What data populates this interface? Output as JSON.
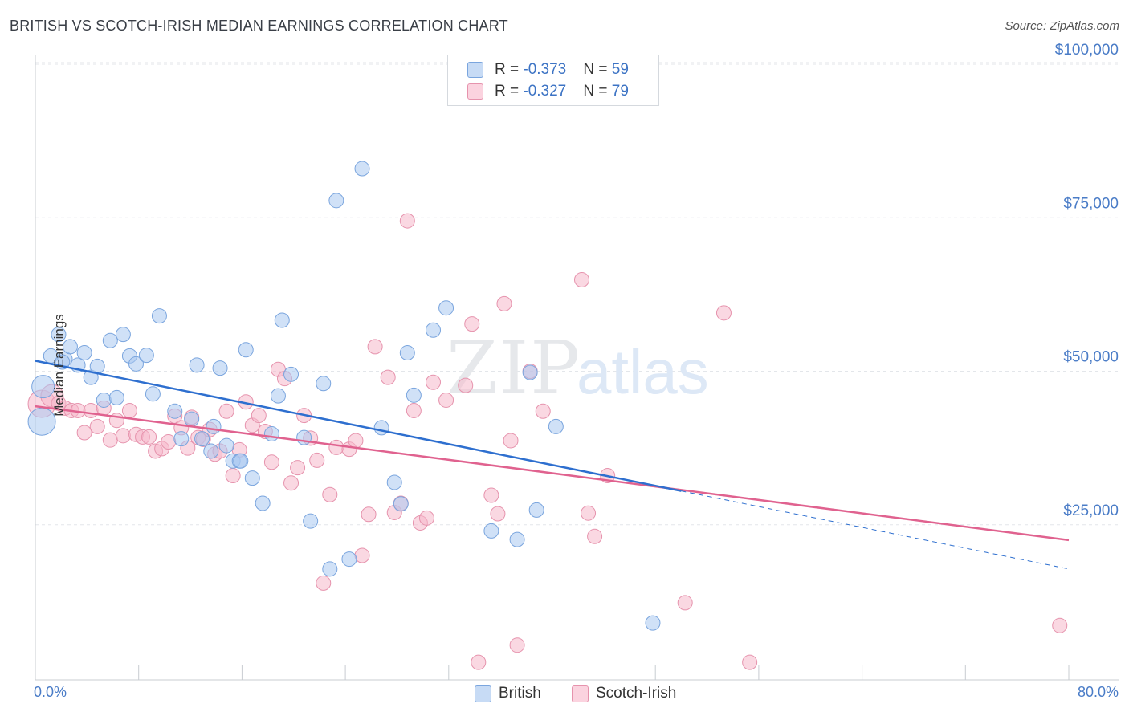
{
  "title": "BRITISH VS SCOTCH-IRISH MEDIAN EARNINGS CORRELATION CHART",
  "source": "Source: ZipAtlas.com",
  "watermark": {
    "zip": "ZIP",
    "atlas": "atlas"
  },
  "legend_top": [
    {
      "r_label": "R = ",
      "r_value": "-0.373",
      "n_label": "N = ",
      "n_value": "59",
      "color": "#aac8f0"
    },
    {
      "r_label": "R = ",
      "r_value": "-0.327",
      "n_label": "N = ",
      "n_value": "79",
      "color": "#f6b8cb"
    }
  ],
  "legend_bottom": [
    {
      "label": "British",
      "color": "#aac8f0"
    },
    {
      "label": "Scotch-Irish",
      "color": "#f6b8cb"
    }
  ],
  "axis": {
    "x_min_label": "0.0%",
    "x_max_label": "80.0%",
    "y_label": "Median Earnings"
  },
  "chart_data": {
    "type": "scatter",
    "title": "BRITISH VS SCOTCH-IRISH MEDIAN EARNINGS CORRELATION CHART",
    "xlabel": "",
    "ylabel": "Median Earnings",
    "xlim": [
      0,
      80
    ],
    "ylim": [
      0,
      102000
    ],
    "y_ticks": [
      25000,
      50000,
      75000,
      100000
    ],
    "y_tick_labels": [
      "$25,000",
      "$50,000",
      "$75,000",
      "$100,000"
    ],
    "grid": true,
    "legend_position": "bottom-center",
    "series": [
      {
        "name": "British",
        "color": "#aac8f0",
        "stroke": "#7aa5de",
        "trend_color": "#2e6fcf",
        "trend": {
          "x0": 0,
          "y0": 51700,
          "x1": 50,
          "y1": 30500,
          "dash_to_x": 80,
          "dash_to_y": 17800
        },
        "points": [
          [
            0.5,
            41800
          ],
          [
            0.6,
            47500
          ],
          [
            1.2,
            52500
          ],
          [
            1.8,
            56000
          ],
          [
            2.3,
            52000
          ],
          [
            2.7,
            54000
          ],
          [
            3.3,
            51000
          ],
          [
            3.8,
            53000
          ],
          [
            4.3,
            49000
          ],
          [
            4.8,
            50800
          ],
          [
            5.3,
            45300
          ],
          [
            5.8,
            55000
          ],
          [
            6.3,
            45700
          ],
          [
            6.8,
            56000
          ],
          [
            7.3,
            52500
          ],
          [
            7.8,
            51200
          ],
          [
            8.6,
            52600
          ],
          [
            9.1,
            46300
          ],
          [
            9.6,
            59000
          ],
          [
            10.8,
            43500
          ],
          [
            11.3,
            39000
          ],
          [
            12.1,
            42200
          ],
          [
            12.5,
            51000
          ],
          [
            12.9,
            39000
          ],
          [
            13.6,
            37000
          ],
          [
            13.8,
            41000
          ],
          [
            14.3,
            50500
          ],
          [
            14.8,
            37900
          ],
          [
            15.3,
            35400
          ],
          [
            15.8,
            35400
          ],
          [
            16.3,
            53500
          ],
          [
            16.8,
            32600
          ],
          [
            17.6,
            28500
          ],
          [
            18.3,
            39800
          ],
          [
            18.8,
            46000
          ],
          [
            19.1,
            58300
          ],
          [
            19.8,
            49500
          ],
          [
            20.8,
            39200
          ],
          [
            21.3,
            25600
          ],
          [
            22.3,
            48000
          ],
          [
            22.8,
            17800
          ],
          [
            23.3,
            77800
          ],
          [
            24.3,
            19400
          ],
          [
            25.3,
            83000
          ],
          [
            26.8,
            40800
          ],
          [
            27.8,
            31900
          ],
          [
            28.3,
            28400
          ],
          [
            28.8,
            53000
          ],
          [
            29.3,
            46100
          ],
          [
            30.8,
            56700
          ],
          [
            31.8,
            60300
          ],
          [
            35.3,
            24000
          ],
          [
            37.3,
            22600
          ],
          [
            38.3,
            49800
          ],
          [
            38.8,
            27400
          ],
          [
            40.3,
            41000
          ],
          [
            47.8,
            9000
          ],
          [
            2.1,
            51500
          ],
          [
            15.9,
            35400
          ]
        ]
      },
      {
        "name": "Scotch-Irish",
        "color": "#f6b8cb",
        "stroke": "#e693ad",
        "trend_color": "#e0628f",
        "trend": {
          "x0": 0,
          "y0": 44300,
          "x1": 80,
          "y1": 22500
        },
        "points": [
          [
            0.5,
            44700
          ],
          [
            1.3,
            46000
          ],
          [
            1.8,
            44800
          ],
          [
            2.3,
            44000
          ],
          [
            2.8,
            43600
          ],
          [
            3.3,
            43600
          ],
          [
            3.8,
            40000
          ],
          [
            4.3,
            43600
          ],
          [
            4.8,
            41000
          ],
          [
            5.3,
            44000
          ],
          [
            5.8,
            38800
          ],
          [
            6.3,
            42000
          ],
          [
            6.8,
            39500
          ],
          [
            7.3,
            43600
          ],
          [
            7.8,
            39700
          ],
          [
            8.3,
            39300
          ],
          [
            8.8,
            39300
          ],
          [
            9.3,
            37000
          ],
          [
            9.8,
            37400
          ],
          [
            10.3,
            38500
          ],
          [
            10.8,
            42700
          ],
          [
            11.3,
            40800
          ],
          [
            11.8,
            37500
          ],
          [
            12.1,
            42500
          ],
          [
            12.6,
            39200
          ],
          [
            13.0,
            38900
          ],
          [
            13.5,
            40500
          ],
          [
            13.9,
            36500
          ],
          [
            14.3,
            37000
          ],
          [
            14.8,
            43500
          ],
          [
            15.3,
            33000
          ],
          [
            15.8,
            37200
          ],
          [
            16.3,
            45000
          ],
          [
            16.8,
            41200
          ],
          [
            17.3,
            42800
          ],
          [
            17.8,
            40200
          ],
          [
            18.3,
            35200
          ],
          [
            18.8,
            50300
          ],
          [
            19.3,
            48800
          ],
          [
            19.8,
            31800
          ],
          [
            20.3,
            34300
          ],
          [
            20.8,
            42800
          ],
          [
            21.3,
            39100
          ],
          [
            21.8,
            35500
          ],
          [
            22.3,
            15500
          ],
          [
            22.8,
            29900
          ],
          [
            23.3,
            37600
          ],
          [
            24.3,
            37300
          ],
          [
            24.8,
            38700
          ],
          [
            25.3,
            20000
          ],
          [
            25.8,
            26700
          ],
          [
            26.3,
            54000
          ],
          [
            27.3,
            49000
          ],
          [
            27.8,
            27000
          ],
          [
            28.3,
            28500
          ],
          [
            28.8,
            74500
          ],
          [
            29.3,
            43600
          ],
          [
            29.8,
            25300
          ],
          [
            30.3,
            26100
          ],
          [
            30.8,
            48200
          ],
          [
            31.8,
            45300
          ],
          [
            33.3,
            47700
          ],
          [
            33.8,
            57700
          ],
          [
            35.3,
            29800
          ],
          [
            35.8,
            26800
          ],
          [
            36.3,
            61000
          ],
          [
            36.8,
            38700
          ],
          [
            37.3,
            5400
          ],
          [
            38.3,
            50000
          ],
          [
            39.3,
            43500
          ],
          [
            42.3,
            64900
          ],
          [
            42.8,
            26900
          ],
          [
            43.3,
            23100
          ],
          [
            44.3,
            33000
          ],
          [
            50.3,
            12300
          ],
          [
            53.3,
            59500
          ],
          [
            55.3,
            2600
          ],
          [
            79.3,
            8600
          ],
          [
            34.3,
            2600
          ]
        ]
      }
    ]
  }
}
